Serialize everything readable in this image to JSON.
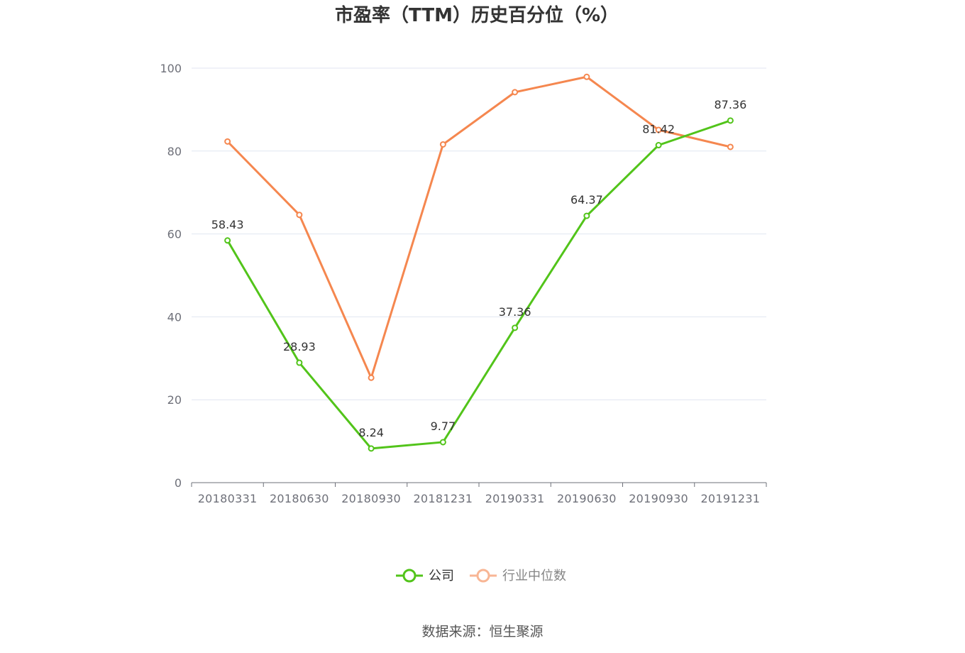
{
  "title": "市盈率（TTM）历史百分位（%）",
  "source": "数据来源：恒生聚源",
  "chart_data": {
    "type": "line",
    "title": "市盈率（TTM）历史百分位（%）",
    "categories": [
      "20180331",
      "20180630",
      "20180930",
      "20181231",
      "20190331",
      "20190630",
      "20190930",
      "20191231"
    ],
    "y_ticks": [
      "0",
      "20",
      "40",
      "60",
      "80",
      "100"
    ],
    "ylim": [
      0,
      100
    ],
    "grid": true,
    "legend_position": "bottom",
    "series": [
      {
        "name": "公司",
        "color": "#52c41a",
        "values": [
          58.43,
          28.93,
          8.24,
          9.77,
          37.36,
          64.37,
          81.42,
          87.36
        ],
        "labels": [
          "58.43",
          "28.93",
          "8.24",
          "9.77",
          "37.36",
          "64.37",
          "81.42",
          "87.36"
        ]
      },
      {
        "name": "行业中位数",
        "color": "#f5874f",
        "values": [
          82.3,
          64.6,
          25.3,
          81.6,
          94.2,
          97.9,
          85.1,
          81.0
        ]
      }
    ]
  }
}
